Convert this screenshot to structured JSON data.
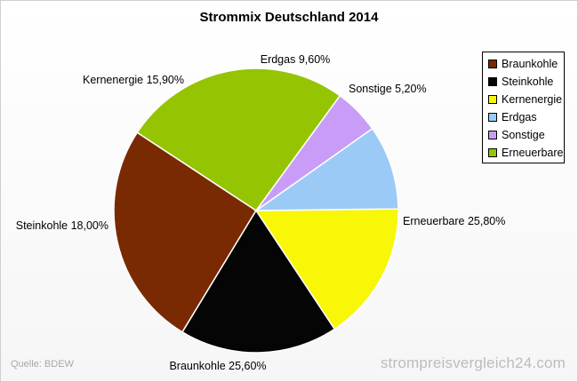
{
  "chart_data": {
    "type": "pie",
    "title": "Strommix Deutschland 2014",
    "slices": [
      {
        "label": "Braunkohle",
        "value": 25.6,
        "value_label": "25,60%",
        "color": "#7a2a02"
      },
      {
        "label": "Steinkohle",
        "value": 18.0,
        "value_label": "18,00%",
        "color": "#050505"
      },
      {
        "label": "Kernenergie",
        "value": 15.9,
        "value_label": "15,90%",
        "color": "#f7f707"
      },
      {
        "label": "Erdgas",
        "value": 9.6,
        "value_label": "9,60%",
        "color": "#9ccaf7"
      },
      {
        "label": "Sonstige",
        "value": 5.2,
        "value_label": "5,20%",
        "color": "#c99cf7"
      },
      {
        "label": "Erneuerbare",
        "value": 25.8,
        "value_label": "25,80%",
        "color": "#95c402"
      }
    ],
    "legend_position": "top-right"
  },
  "footer": {
    "source": "Quelle: BDEW",
    "watermark": "strompreisvergleich24.com"
  }
}
